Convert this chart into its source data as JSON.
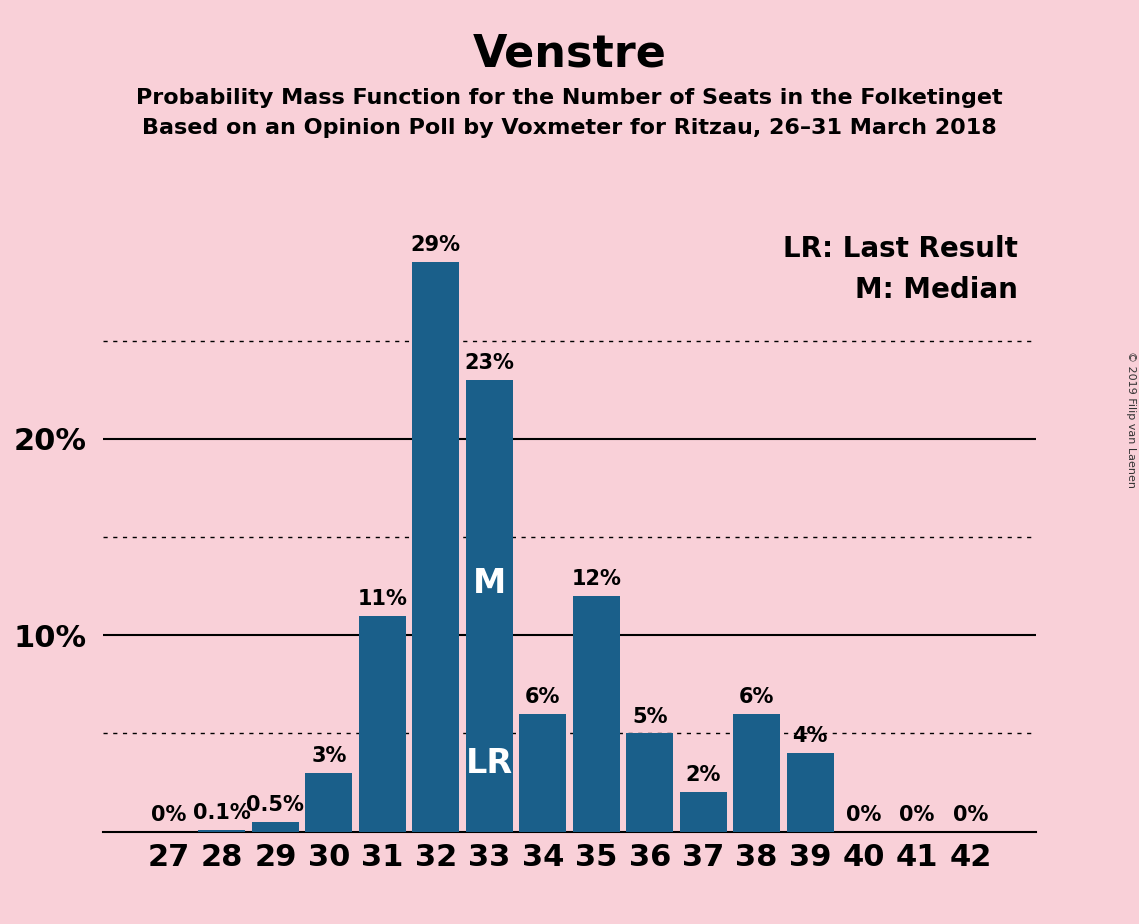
{
  "title": "Venstre",
  "subtitle1": "Probability Mass Function for the Number of Seats in the Folketinget",
  "subtitle2": "Based on an Opinion Poll by Voxmeter for Ritzau, 26–31 March 2018",
  "copyright": "© 2019 Filip van Laenen",
  "seats": [
    27,
    28,
    29,
    30,
    31,
    32,
    33,
    34,
    35,
    36,
    37,
    38,
    39,
    40,
    41,
    42
  ],
  "probabilities": [
    0.0,
    0.1,
    0.5,
    3.0,
    11.0,
    29.0,
    23.0,
    6.0,
    12.0,
    5.0,
    2.0,
    6.0,
    4.0,
    0.0,
    0.0,
    0.0
  ],
  "labels": [
    "0%",
    "0.1%",
    "0.5%",
    "3%",
    "11%",
    "29%",
    "23%",
    "6%",
    "12%",
    "5%",
    "2%",
    "6%",
    "4%",
    "0%",
    "0%",
    "0%"
  ],
  "bar_color": "#1a5f8a",
  "background_color": "#f9d0d8",
  "bar_label_color_outside": "#000000",
  "bar_label_color_inside": "#ffffff",
  "median_seat": 33,
  "lr_seat": 33,
  "median_label": "M",
  "lr_label": "LR",
  "ylim": [
    0,
    32
  ],
  "dotted_lines": [
    5,
    15,
    25
  ],
  "solid_lines": [
    10,
    20
  ],
  "legend_text": "LR: Last Result\nM: Median",
  "title_fontsize": 32,
  "subtitle_fontsize": 16,
  "axis_tick_fontsize": 22,
  "bar_label_fontsize": 15,
  "bar_label_inside_fontsize": 24,
  "legend_fontsize": 20,
  "copyright_fontsize": 8
}
